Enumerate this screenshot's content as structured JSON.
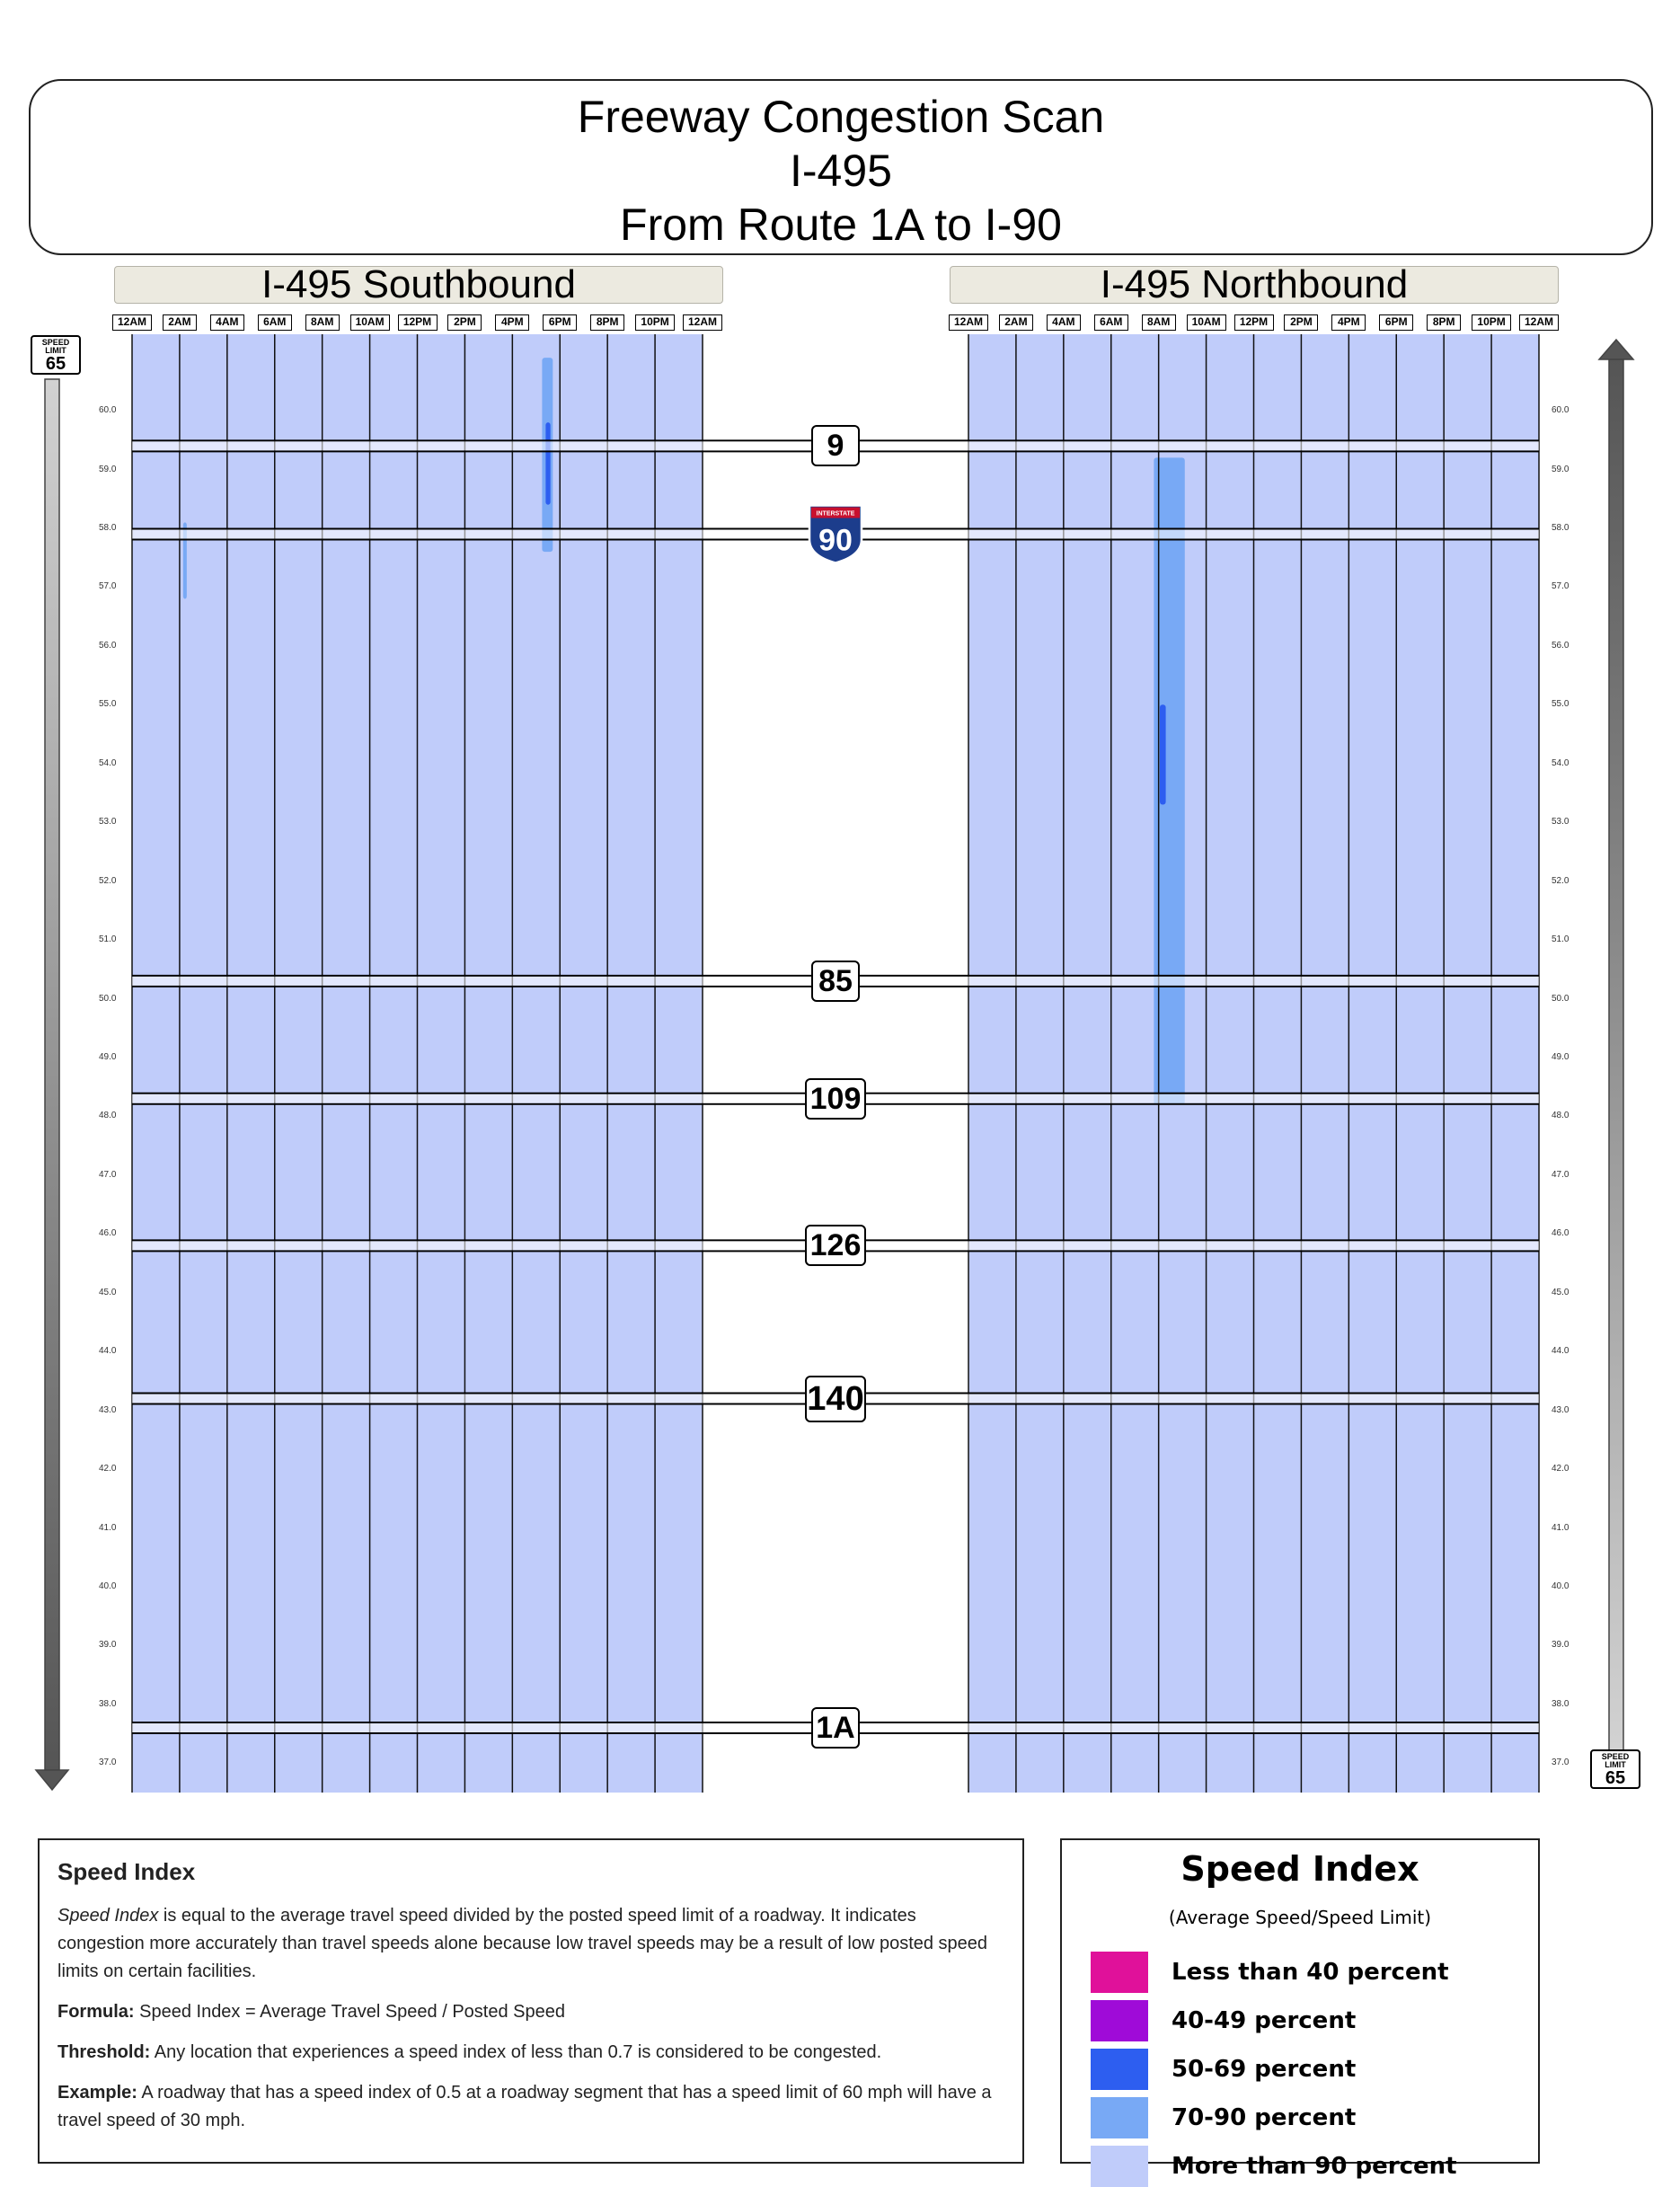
{
  "title": {
    "line1": "Freeway Congestion Scan",
    "line2": "I-495",
    "line3": "From Route 1A to I-90"
  },
  "directions": {
    "left": "I-495 Southbound",
    "right": "I-495 Northbound"
  },
  "speed_limit_sign": {
    "text": "SPEED LIMIT",
    "value": "65"
  },
  "chart_data": {
    "type": "heatmap",
    "x_axis": {
      "type": "time of day",
      "tick_labels": [
        "12AM",
        "2AM",
        "4AM",
        "6AM",
        "8AM",
        "10AM",
        "12PM",
        "2PM",
        "4PM",
        "6PM",
        "8PM",
        "10PM",
        "12AM"
      ],
      "range_hours": [
        0,
        24
      ]
    },
    "y_axis": {
      "type": "mile marker",
      "tick_labels": [
        "60.0",
        "59.0",
        "58.0",
        "57.0",
        "56.0",
        "55.0",
        "54.0",
        "53.0",
        "52.0",
        "51.0",
        "50.0",
        "49.0",
        "48.0",
        "47.0",
        "46.0",
        "45.0",
        "44.0",
        "43.0",
        "42.0",
        "41.0",
        "40.0",
        "39.0",
        "38.0",
        "37.0"
      ],
      "range": [
        36.5,
        61.3
      ]
    },
    "interchanges": [
      {
        "label": "9",
        "mile": 59.4,
        "type": "route"
      },
      {
        "label": "90",
        "mile": 57.9,
        "type": "interstate",
        "banner": "INTERSTATE"
      },
      {
        "label": "85",
        "mile": 50.3,
        "type": "route"
      },
      {
        "label": "109",
        "mile": 48.3,
        "type": "route"
      },
      {
        "label": "126",
        "mile": 45.8,
        "type": "route"
      },
      {
        "label": "140",
        "mile": 43.2,
        "type": "route"
      },
      {
        "label": "1A",
        "mile": 37.6,
        "type": "route"
      }
    ],
    "panels": [
      {
        "name": "I-495 Southbound",
        "base_category": "more_than_90",
        "congestion": [
          {
            "category": "70_90",
            "start_hour": 17.25,
            "end_hour": 17.7,
            "mile_top": 60.9,
            "mile_bottom": 57.6
          },
          {
            "category": "50_69",
            "start_hour": 17.4,
            "end_hour": 17.6,
            "mile_top": 59.8,
            "mile_bottom": 58.4
          },
          {
            "category": "70_90",
            "start_hour": 2.15,
            "end_hour": 2.3,
            "mile_top": 58.1,
            "mile_bottom": 56.8
          }
        ]
      },
      {
        "name": "I-495 Northbound",
        "base_category": "more_than_90",
        "congestion": [
          {
            "category": "70_90",
            "start_hour": 7.8,
            "end_hour": 9.1,
            "mile_top": 59.2,
            "mile_bottom": 48.2
          },
          {
            "category": "50_69",
            "start_hour": 8.05,
            "end_hour": 8.3,
            "mile_top": 55.0,
            "mile_bottom": 53.3
          }
        ]
      }
    ],
    "legend": [
      {
        "key": "lt_40",
        "label": "Less than 40 percent",
        "color": "#e0119a"
      },
      {
        "key": "40_49",
        "label": "40-49 percent",
        "color": "#9f0bd8"
      },
      {
        "key": "50_69",
        "label": "50-69 percent",
        "color": "#2d5ef0"
      },
      {
        "key": "70_90",
        "label": "70-90 percent",
        "color": "#78a9f5"
      },
      {
        "key": "more_than_90",
        "label": "More than 90 percent",
        "color": "#c0ccfa"
      }
    ]
  },
  "legend_box": {
    "title": "Speed Index",
    "subtitle": "(Average Speed/Speed Limit)"
  },
  "info": {
    "heading": "Speed Index",
    "para1_term": "Speed Index",
    "para1_rest": " is equal to the average travel speed divided by the posted speed limit of a roadway. It indicates congestion more accurately than travel speeds alone because low travel speeds may be a result of low posted speed limits on certain facilities.",
    "formula_label": "Formula:",
    "formula_text": " Speed Index = Average Travel Speed / Posted Speed",
    "threshold_label": "Threshold:",
    "threshold_text": " Any location that experiences a speed index of less than 0.7 is considered to be congested.",
    "example_label": "Example:",
    "example_text": " A roadway that has a speed index of 0.5 at a roadway segment that has a speed limit of 60 mph will have a travel speed of 30 mph."
  }
}
